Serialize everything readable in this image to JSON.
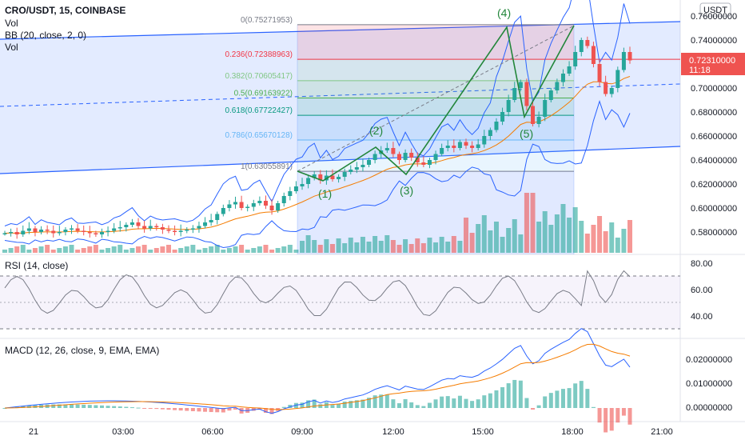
{
  "header": {
    "symbol_line": "CRO/USDT, 15, COINBASE",
    "vol_label": "Vol",
    "bb_label": "BB (20, close, 2, 0)",
    "vol2_label": "Vol",
    "currency_badge": "USDT"
  },
  "price_axis": {
    "ticks": [
      "0.76000000",
      "0.74000000",
      "0.72000000",
      "0.70000000",
      "0.68000000",
      "0.66000000",
      "0.64000000",
      "0.62000000",
      "0.60000000",
      "0.58000000"
    ],
    "current_price": "0.72310000",
    "countdown": "11:18",
    "price_tag_color": "#ef5350"
  },
  "fib": {
    "levels": [
      {
        "label": "0(0.75271953)",
        "color": "#787b86"
      },
      {
        "label": "0.236(0.72388963)",
        "color": "#f23645"
      },
      {
        "label": "0.382(0.70605417)",
        "color": "#81c784"
      },
      {
        "label": "0.5(0.69163922)",
        "color": "#4caf50"
      },
      {
        "label": "0.618(0.67722427)",
        "color": "#089981"
      },
      {
        "label": "0.786(0.65670128)",
        "color": "#64b5f6"
      },
      {
        "label": "1(0.63055891)",
        "color": "#787b86"
      }
    ]
  },
  "waves": {
    "labels": [
      "(1)",
      "(2)",
      "(3)",
      "(4)",
      "(5)"
    ],
    "color": "#22863a"
  },
  "rsi": {
    "label": "RSI (14, close)",
    "ticks": [
      "80.00",
      "60.00",
      "40.00"
    ],
    "color": "#7e57c2"
  },
  "macd": {
    "label": "MACD (12, 26, close, 9, EMA, EMA)",
    "ticks": [
      "0.02000000",
      "0.01000000",
      "0.00000000"
    ]
  },
  "time_axis": {
    "labels": [
      "21",
      "03:00",
      "06:00",
      "09:00",
      "12:00",
      "15:00",
      "18:00",
      "21:00"
    ]
  },
  "colors": {
    "up": "#26a69a",
    "down": "#ef5350",
    "bb": "#2962ff",
    "ema": "#f57c00",
    "channel": "#2962ff"
  },
  "chart_data": {
    "type": "candlestick",
    "close_price_path": [
      0.579,
      0.58,
      0.578,
      0.581,
      0.583,
      0.58,
      0.582,
      0.581,
      0.579,
      0.58,
      0.582,
      0.583,
      0.581,
      0.58,
      0.579,
      0.578,
      0.58,
      0.581,
      0.583,
      0.584,
      0.586,
      0.588,
      0.585,
      0.583,
      0.585,
      0.584,
      0.582,
      0.581,
      0.58,
      0.581,
      0.582,
      0.583,
      0.585,
      0.588,
      0.59,
      0.595,
      0.6,
      0.603,
      0.605,
      0.6,
      0.601,
      0.604,
      0.606,
      0.602,
      0.598,
      0.604,
      0.61,
      0.614,
      0.618,
      0.62,
      0.625,
      0.628,
      0.623,
      0.627,
      0.624,
      0.626,
      0.63,
      0.632,
      0.634,
      0.636,
      0.64,
      0.645,
      0.648,
      0.65,
      0.645,
      0.64,
      0.646,
      0.642,
      0.638,
      0.636,
      0.64,
      0.645,
      0.65,
      0.652,
      0.65,
      0.655,
      0.652,
      0.65,
      0.653,
      0.66,
      0.665,
      0.672,
      0.68,
      0.69,
      0.7,
      0.705,
      0.685,
      0.67,
      0.676,
      0.69,
      0.698,
      0.705,
      0.712,
      0.718,
      0.73,
      0.74,
      0.735,
      0.72,
      0.705,
      0.695,
      0.7,
      0.715,
      0.73,
      0.723
    ],
    "price_range": [
      0.57,
      0.765
    ]
  }
}
